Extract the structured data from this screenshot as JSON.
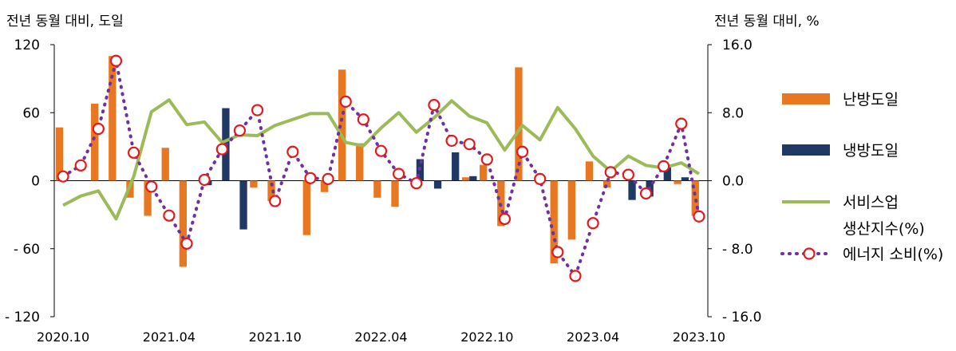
{
  "chart_data": {
    "type": "bar",
    "left_axis_title": "전년 동월 대비, 도일",
    "right_axis_title": "전년 동월 대비, %",
    "y_left_ticks": [
      "120",
      "60",
      "0",
      "- 60",
      "- 120"
    ],
    "y_left_tick_values": [
      120,
      60,
      0,
      -60,
      -120
    ],
    "ylim_left": [
      -120,
      120
    ],
    "y_right_ticks": [
      "16.0",
      "8.0",
      "0.0",
      "- 8.0",
      "- 16.0"
    ],
    "y_right_tick_values": [
      16,
      8,
      0,
      -8,
      -16
    ],
    "ylim_right": [
      -16,
      16
    ],
    "x_tick_labels": [
      "2020.10",
      "2021.04",
      "2021.10",
      "2022.04",
      "2022.10",
      "2023.04",
      "2023.10"
    ],
    "x_tick_month_index": [
      0,
      6,
      12,
      18,
      24,
      30,
      36
    ],
    "months": [
      "2020.10",
      "2020.11",
      "2020.12",
      "2021.01",
      "2021.02",
      "2021.03",
      "2021.04",
      "2021.05",
      "2021.06",
      "2021.07",
      "2021.08",
      "2021.09",
      "2021.10",
      "2021.11",
      "2021.12",
      "2022.01",
      "2022.02",
      "2022.03",
      "2022.04",
      "2022.05",
      "2022.06",
      "2022.07",
      "2022.08",
      "2022.09",
      "2022.10",
      "2022.11",
      "2022.12",
      "2023.01",
      "2023.02",
      "2023.03",
      "2023.04",
      "2023.05",
      "2023.06",
      "2023.07",
      "2023.08",
      "2023.09",
      "2023.10"
    ],
    "series": [
      {
        "name": "난방도일",
        "type": "bar",
        "axis": "left",
        "color": "#E87722",
        "values": [
          47,
          0,
          68,
          110,
          -15,
          -31,
          29,
          -76,
          0,
          0,
          0,
          -6,
          -18,
          0,
          -48,
          -10,
          98,
          33,
          -15,
          -23,
          0,
          0,
          0,
          3,
          14,
          -40,
          100,
          0,
          -73,
          -52,
          17,
          -6,
          0,
          0,
          0,
          -3,
          -31
        ]
      },
      {
        "name": "냉방도일",
        "type": "bar",
        "axis": "left",
        "color": "#1F3864",
        "values": [
          0,
          0,
          0,
          0,
          0,
          0,
          0,
          0,
          -4,
          64,
          -43,
          0,
          0,
          0,
          0,
          0,
          0,
          0,
          0,
          0,
          19,
          -7,
          25,
          4,
          0,
          0,
          0,
          0,
          0,
          0,
          0,
          0,
          -17,
          -14,
          13,
          3,
          0
        ]
      },
      {
        "name": "서비스업 생산지수(%)",
        "type": "line",
        "axis": "right",
        "color": "#9BBB59",
        "values": [
          -2.9,
          -1.8,
          -1.2,
          -4.5,
          0.5,
          8.1,
          9.5,
          6.6,
          6.9,
          4.5,
          5.4,
          5.3,
          6.5,
          7.2,
          7.9,
          7.9,
          4.5,
          4.1,
          6.2,
          8.0,
          5.7,
          7.4,
          9.4,
          7.6,
          6.8,
          3.6,
          6.5,
          4.8,
          8.6,
          6.1,
          2.9,
          1.1,
          2.9,
          1.8,
          1.5,
          2.1,
          0.8
        ]
      },
      {
        "name": "에너지 소비(%)",
        "type": "line",
        "axis": "right",
        "color": "#7030A0",
        "marker_color": "#E31A1C",
        "values": [
          0.5,
          1.8,
          6.1,
          14.1,
          3.3,
          -0.7,
          -4.1,
          -7.4,
          0.1,
          3.7,
          5.9,
          8.3,
          -2.4,
          3.4,
          0.3,
          0.2,
          9.3,
          7.2,
          3.5,
          0.8,
          -0.3,
          8.9,
          4.7,
          4.3,
          2.5,
          -4.5,
          3.4,
          0.2,
          -8.4,
          -11.2,
          -5.0,
          1.0,
          0.7,
          -1.5,
          1.7,
          6.7,
          -4.2
        ]
      }
    ],
    "legend": [
      {
        "label": "난방도일",
        "kind": "bar",
        "color": "#E87722"
      },
      {
        "label": "냉방도일",
        "kind": "bar",
        "color": "#1F3864"
      },
      {
        "label": "서비스업",
        "label2": "생산지수(%)",
        "kind": "line",
        "color": "#9BBB59"
      },
      {
        "label": "에너지 소비(%)",
        "kind": "marker-line",
        "color": "#7030A0",
        "marker_color": "#E31A1C"
      }
    ],
    "legend_position": "right"
  }
}
